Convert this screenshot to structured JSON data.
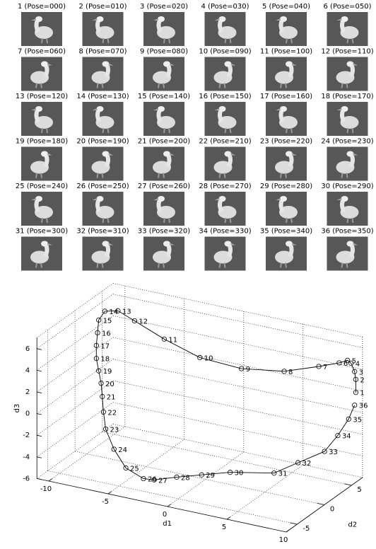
{
  "figure": {
    "panels": [
      "1 (Pose=000)",
      "2 (Pose=010)",
      "3 (Pose=020)",
      "4 (Pose=030)",
      "5 (Pose=040)",
      "6 (Pose=050)",
      "7 (Pose=060)",
      "8 (Pose=070)",
      "9 (Pose=080)",
      "10 (Pose=090)",
      "11 (Pose=100)",
      "12 (Pose=110)",
      "13 (Pose=120)",
      "14 (Pose=130)",
      "15 (Pose=140)",
      "16 (Pose=150)",
      "17 (Pose=160)",
      "18 (Pose=170)",
      "19 (Pose=180)",
      "20 (Pose=190)",
      "21 (Pose=200)",
      "22 (Pose=210)",
      "23 (Pose=220)",
      "24 (Pose=230)",
      "25 (Pose=240)",
      "26 (Pose=250)",
      "27 (Pose=260)",
      "28 (Pose=270)",
      "29 (Pose=280)",
      "30 (Pose=290)",
      "31 (Pose=300)",
      "32 (Pose=310)",
      "33 (Pose=320)",
      "34 (Pose=330)",
      "35 (Pose=340)",
      "36 (Pose=350)"
    ]
  },
  "chart_data": {
    "type": "line3d",
    "xlabel": "d1",
    "ylabel": "d2",
    "zlabel": "d3",
    "xlim": [
      -11,
      10
    ],
    "ylim": [
      -7,
      7
    ],
    "zlim": [
      -6,
      7
    ],
    "xticks": [
      -10,
      -5,
      0,
      5,
      10
    ],
    "yticks": [
      -5,
      0,
      5
    ],
    "zticks": [
      -6,
      -4,
      -2,
      0,
      2,
      4,
      6
    ],
    "grid": true,
    "color": "#000000",
    "point_labels": [
      "1",
      "2",
      "3",
      "4",
      "5",
      "6",
      "7",
      "8",
      "9",
      "10",
      "11",
      "12",
      "13",
      "14",
      "15",
      "16",
      "17",
      "18",
      "19",
      "20",
      "21",
      "22",
      "23",
      "24",
      "25",
      "26",
      "27",
      "28",
      "29",
      "30",
      "31",
      "32",
      "33",
      "34",
      "35",
      "36"
    ],
    "x": [
      9.9,
      9.9,
      9.8,
      9.5,
      9.2,
      8.5,
      7.7,
      5.7,
      2.1,
      -1.4,
      -4.4,
      -6.9,
      -8.3,
      -9.4,
      -9.0,
      -9.1,
      -9.2,
      -9.2,
      -9.0,
      -8.8,
      -8.7,
      -8.6,
      -7.5,
      -6.8,
      -5.8,
      -3.4,
      -2.5,
      -0.6,
      1.5,
      3.9,
      7.6,
      8.7,
      9.1,
      9.3,
      9.3,
      9.8
    ],
    "y": [
      6,
      6,
      6,
      6,
      6,
      6,
      4,
      2,
      2,
      2,
      2,
      2,
      2,
      2,
      0,
      0,
      0,
      0,
      0,
      0,
      0,
      0,
      -2,
      -2,
      -2,
      -4,
      -4,
      -4,
      -4,
      -4,
      -4,
      -2,
      2,
      4,
      6,
      6
    ],
    "z": [
      2.2,
      3.4,
      4.1,
      4.8,
      5.0,
      4.6,
      4.8,
      4.6,
      4.0,
      4.2,
      5.2,
      6.3,
      6.9,
      6.6,
      6.6,
      5.4,
      4.2,
      3.0,
      1.9,
      0.8,
      -0.4,
      -1.8,
      -2.4,
      -4.1,
      -5.6,
      -5.3,
      -5.2,
      -4.5,
      -3.8,
      -3.0,
      -2.2,
      -1.7,
      -2.0,
      -1.2,
      -0.4,
      1.0
    ]
  }
}
